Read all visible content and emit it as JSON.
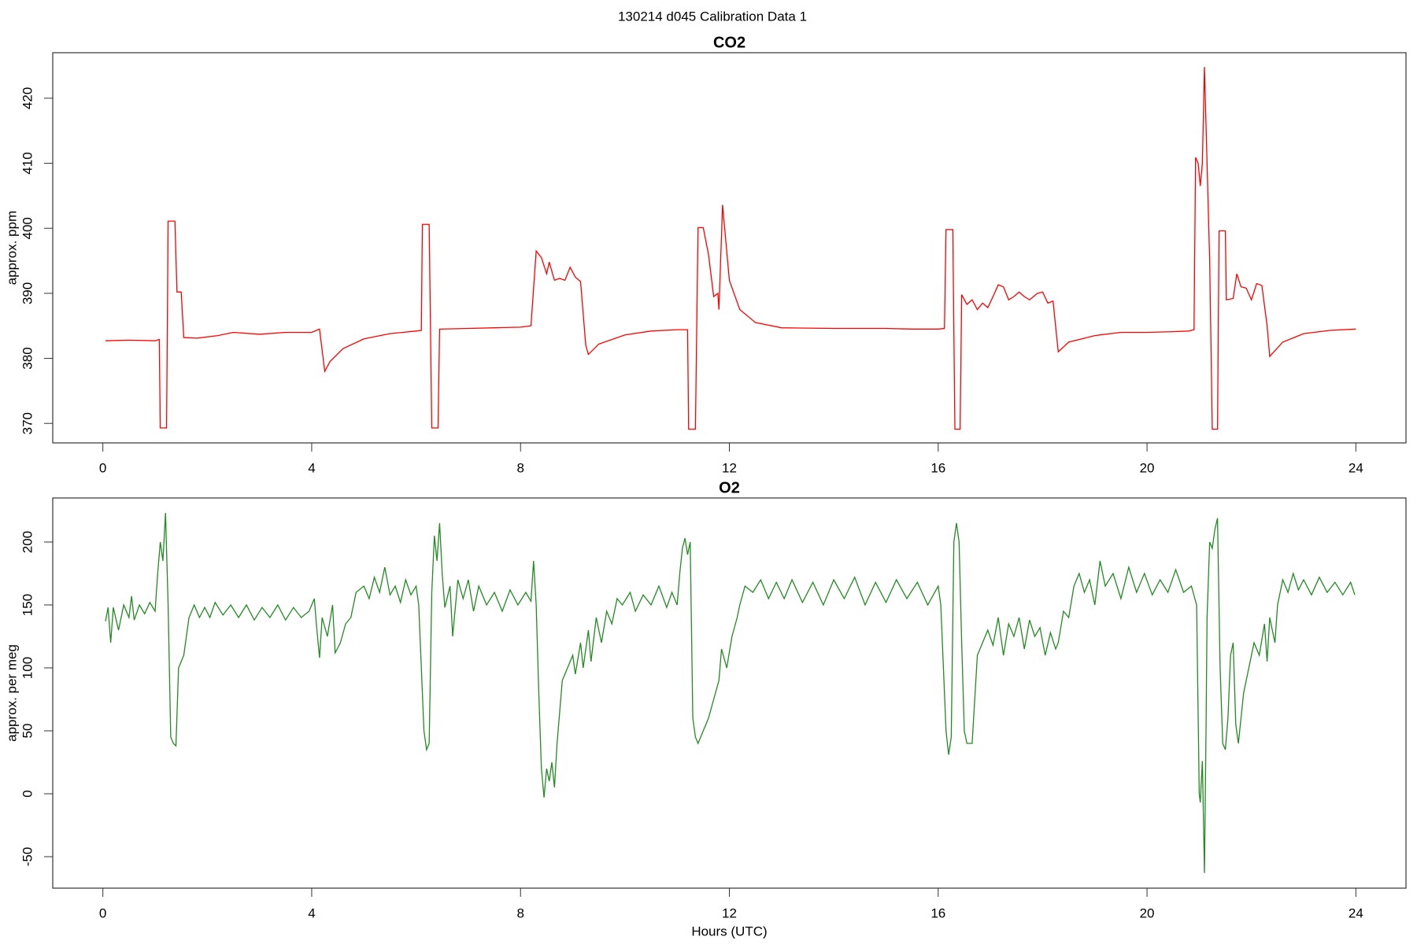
{
  "title": "130214   d045   Calibration Data 1",
  "chart_data": [
    {
      "type": "line",
      "title": "CO2",
      "y_label": "approx. ppm",
      "xlim": [
        -0.96,
        24.96
      ],
      "ylim": [
        367,
        427
      ],
      "xticks": [
        0,
        4,
        8,
        12,
        16,
        20,
        24
      ],
      "yticks": [
        370,
        380,
        390,
        400,
        410,
        420
      ],
      "x": [
        0.05,
        0.5,
        1.0,
        1.08,
        1.1,
        1.22,
        1.25,
        1.38,
        1.42,
        1.5,
        1.55,
        1.8,
        2.2,
        2.5,
        3.0,
        3.5,
        4.0,
        4.15,
        4.25,
        4.35,
        4.6,
        5.0,
        5.5,
        6.0,
        6.1,
        6.12,
        6.25,
        6.3,
        6.42,
        6.45,
        7.0,
        7.5,
        8.0,
        8.2,
        8.3,
        8.4,
        8.5,
        8.55,
        8.65,
        8.75,
        8.85,
        8.95,
        9.05,
        9.15,
        9.25,
        9.3,
        9.5,
        10.0,
        10.5,
        11.0,
        11.2,
        11.22,
        11.35,
        11.4,
        11.5,
        11.6,
        11.7,
        11.78,
        11.8,
        11.87,
        12.0,
        12.2,
        12.5,
        13.0,
        14.0,
        15.0,
        15.5,
        16.0,
        16.12,
        16.15,
        16.28,
        16.32,
        16.42,
        16.45,
        16.55,
        16.65,
        16.75,
        16.85,
        16.95,
        17.05,
        17.15,
        17.25,
        17.35,
        17.45,
        17.55,
        17.65,
        17.75,
        17.9,
        18.0,
        18.1,
        18.2,
        18.3,
        18.5,
        19.0,
        19.5,
        20.0,
        20.5,
        20.8,
        20.9,
        20.93,
        20.98,
        21.02,
        21.06,
        21.1,
        21.2,
        21.25,
        21.35,
        21.38,
        21.5,
        21.52,
        21.65,
        21.72,
        21.8,
        21.9,
        22.0,
        22.1,
        22.2,
        22.3,
        22.35,
        22.6,
        23.0,
        23.5,
        24.0
      ],
      "series": [
        {
          "color": "#ff0000",
          "values": [
            382.7,
            382.8,
            382.7,
            382.9,
            369.3,
            369.3,
            401.1,
            401.1,
            390.2,
            390.2,
            383.2,
            383.1,
            383.5,
            384.0,
            383.7,
            384.0,
            384.0,
            384.5,
            378.0,
            379.5,
            381.5,
            383.0,
            383.8,
            384.2,
            384.3,
            400.6,
            400.6,
            369.3,
            369.3,
            384.5,
            384.6,
            384.7,
            384.8,
            385.0,
            396.5,
            395.5,
            393.0,
            394.8,
            392.0,
            392.3,
            392.0,
            394.0,
            392.5,
            391.8,
            382.0,
            380.6,
            382.2,
            383.6,
            384.2,
            384.4,
            384.4,
            369.1,
            369.1,
            400.1,
            400.1,
            396.0,
            389.5,
            390.0,
            387.5,
            403.6,
            392.0,
            387.5,
            385.5,
            384.7,
            384.6,
            384.6,
            384.5,
            384.5,
            384.6,
            399.8,
            399.8,
            369.1,
            369.1,
            389.8,
            388.3,
            389.0,
            387.5,
            388.5,
            387.8,
            389.5,
            391.3,
            391.0,
            389.0,
            389.5,
            390.2,
            389.5,
            389.0,
            390.0,
            390.2,
            388.5,
            388.8,
            381.0,
            382.5,
            383.5,
            384.0,
            384.0,
            384.1,
            384.2,
            384.4,
            410.9,
            410.0,
            406.5,
            410.0,
            424.8,
            395.0,
            369.1,
            369.1,
            399.6,
            399.6,
            389.0,
            389.2,
            393.0,
            391.0,
            390.8,
            389.0,
            391.5,
            391.2,
            385.0,
            380.3,
            382.5,
            383.8,
            384.3,
            384.5
          ]
        }
      ]
    },
    {
      "type": "line",
      "title": "O2",
      "y_label": "approx. per meg",
      "x_label": "Hours (UTC)",
      "xlim": [
        -0.96,
        24.96
      ],
      "ylim": [
        -75,
        235
      ],
      "xticks": [
        0,
        4,
        8,
        12,
        16,
        20,
        24
      ],
      "yticks": [
        -50,
        0,
        50,
        100,
        150,
        200
      ],
      "x": [
        0.05,
        0.1,
        0.15,
        0.2,
        0.3,
        0.4,
        0.5,
        0.55,
        0.6,
        0.7,
        0.8,
        0.9,
        1.0,
        1.05,
        1.1,
        1.15,
        1.2,
        1.25,
        1.3,
        1.35,
        1.4,
        1.45,
        1.5,
        1.55,
        1.65,
        1.75,
        1.85,
        1.95,
        2.05,
        2.15,
        2.3,
        2.45,
        2.6,
        2.75,
        2.9,
        3.05,
        3.2,
        3.35,
        3.5,
        3.65,
        3.8,
        3.95,
        4.05,
        4.1,
        4.15,
        4.2,
        4.3,
        4.4,
        4.45,
        4.55,
        4.65,
        4.75,
        4.85,
        5.0,
        5.1,
        5.2,
        5.3,
        5.4,
        5.5,
        5.6,
        5.7,
        5.8,
        5.9,
        6.0,
        6.05,
        6.1,
        6.15,
        6.2,
        6.25,
        6.3,
        6.35,
        6.4,
        6.45,
        6.5,
        6.55,
        6.65,
        6.7,
        6.8,
        6.9,
        7.0,
        7.1,
        7.2,
        7.35,
        7.5,
        7.65,
        7.8,
        7.95,
        8.1,
        8.2,
        8.25,
        8.3,
        8.35,
        8.4,
        8.45,
        8.5,
        8.55,
        8.6,
        8.65,
        8.7,
        8.8,
        8.9,
        9.0,
        9.05,
        9.15,
        9.2,
        9.3,
        9.35,
        9.45,
        9.55,
        9.65,
        9.75,
        9.85,
        9.95,
        10.1,
        10.2,
        10.35,
        10.5,
        10.65,
        10.8,
        10.9,
        11.0,
        11.05,
        11.1,
        11.15,
        11.2,
        11.25,
        11.3,
        11.35,
        11.4,
        11.5,
        11.6,
        11.7,
        11.8,
        11.85,
        11.95,
        12.05,
        12.15,
        12.2,
        12.3,
        12.45,
        12.6,
        12.75,
        12.9,
        13.05,
        13.2,
        13.4,
        13.6,
        13.8,
        14.0,
        14.2,
        14.4,
        14.6,
        14.8,
        15.0,
        15.2,
        15.4,
        15.6,
        15.8,
        16.0,
        16.05,
        16.1,
        16.15,
        16.2,
        16.25,
        16.3,
        16.35,
        16.4,
        16.45,
        16.5,
        16.55,
        16.65,
        16.7,
        16.75,
        16.85,
        16.95,
        17.05,
        17.15,
        17.25,
        17.35,
        17.45,
        17.55,
        17.65,
        17.75,
        17.85,
        17.95,
        18.05,
        18.15,
        18.25,
        18.3,
        18.4,
        18.5,
        18.6,
        18.7,
        18.8,
        18.9,
        19.0,
        19.1,
        19.2,
        19.35,
        19.5,
        19.65,
        19.8,
        19.95,
        20.1,
        20.25,
        20.4,
        20.55,
        20.7,
        20.85,
        20.95,
        21.0,
        21.02,
        21.06,
        21.1,
        21.13,
        21.15,
        21.2,
        21.25,
        21.3,
        21.35,
        21.4,
        21.45,
        21.5,
        21.55,
        21.6,
        21.65,
        21.7,
        21.75,
        21.85,
        21.95,
        22.05,
        22.15,
        22.25,
        22.3,
        22.35,
        22.45,
        22.5,
        22.6,
        22.7,
        22.8,
        22.9,
        23.0,
        23.15,
        23.3,
        23.45,
        23.6,
        23.75,
        23.9,
        23.98
      ],
      "series": [
        {
          "color": "#228b22",
          "values": [
            137,
            148,
            120,
            148,
            130,
            150,
            140,
            157,
            138,
            150,
            143,
            152,
            145,
            175,
            200,
            185,
            223,
            150,
            45,
            40,
            38,
            100,
            105,
            110,
            140,
            150,
            140,
            148,
            140,
            152,
            142,
            150,
            140,
            150,
            138,
            148,
            140,
            150,
            138,
            148,
            140,
            145,
            155,
            130,
            108,
            140,
            125,
            150,
            112,
            120,
            135,
            140,
            160,
            165,
            155,
            172,
            160,
            180,
            158,
            165,
            152,
            170,
            158,
            165,
            150,
            100,
            50,
            35,
            40,
            160,
            205,
            185,
            215,
            175,
            148,
            165,
            125,
            170,
            155,
            170,
            145,
            165,
            150,
            160,
            145,
            162,
            150,
            160,
            153,
            185,
            150,
            80,
            20,
            -3,
            20,
            10,
            25,
            5,
            40,
            90,
            100,
            110,
            95,
            120,
            100,
            130,
            105,
            140,
            120,
            145,
            135,
            155,
            150,
            160,
            145,
            158,
            150,
            165,
            148,
            160,
            150,
            175,
            195,
            203,
            190,
            200,
            60,
            45,
            40,
            50,
            60,
            75,
            90,
            115,
            100,
            125,
            140,
            150,
            165,
            160,
            170,
            155,
            168,
            155,
            170,
            152,
            168,
            150,
            170,
            155,
            172,
            150,
            168,
            152,
            170,
            155,
            168,
            150,
            165,
            150,
            100,
            50,
            31,
            45,
            200,
            215,
            200,
            120,
            50,
            40,
            40,
            75,
            110,
            120,
            130,
            118,
            140,
            110,
            135,
            125,
            140,
            115,
            138,
            125,
            132,
            110,
            128,
            115,
            120,
            145,
            140,
            165,
            175,
            160,
            170,
            150,
            185,
            165,
            175,
            155,
            180,
            160,
            175,
            158,
            170,
            160,
            178,
            160,
            165,
            150,
            0,
            -7,
            26,
            -63,
            50,
            140,
            200,
            195,
            210,
            219,
            100,
            40,
            35,
            60,
            110,
            120,
            55,
            40,
            80,
            100,
            120,
            110,
            135,
            105,
            140,
            120,
            150,
            170,
            160,
            175,
            162,
            170,
            158,
            172,
            160,
            168,
            158,
            168,
            158
          ]
        }
      ]
    }
  ]
}
